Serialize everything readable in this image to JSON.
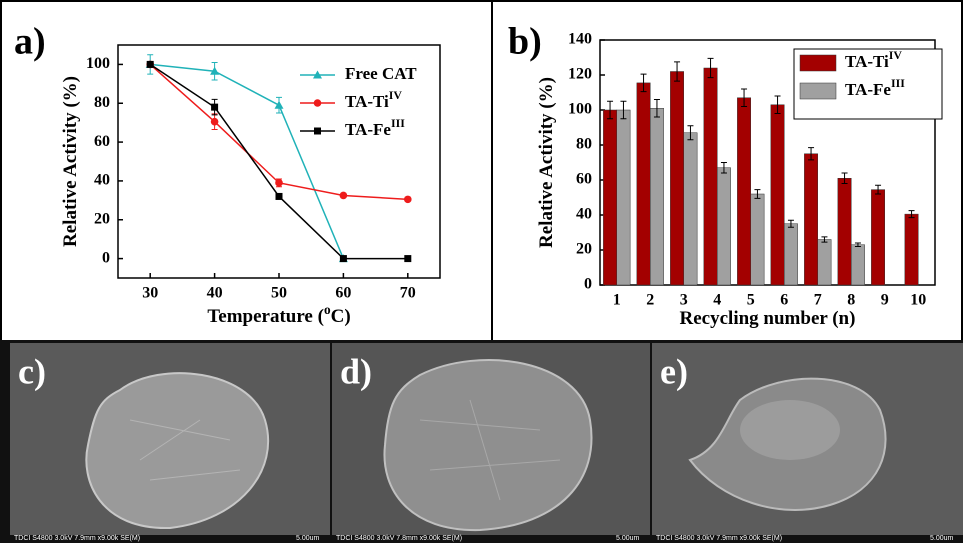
{
  "chart_data": [
    {
      "type": "line",
      "panel_label": "a)",
      "ylabel": "Relative Activity (%)",
      "xlabel": [
        "Temperature (",
        "o",
        "C)"
      ],
      "x": [
        30,
        40,
        50,
        60,
        70
      ],
      "xlim": [
        25,
        75
      ],
      "xticks": [
        30,
        40,
        50,
        60,
        70
      ],
      "ylim": [
        -10,
        110
      ],
      "yticks": [
        0,
        20,
        40,
        60,
        80,
        100
      ],
      "series": [
        {
          "name": "Free CAT",
          "name_superscript": null,
          "color": "#20b2b8",
          "marker": "triangle",
          "values": [
            100,
            96.5,
            79,
            0,
            null
          ],
          "errors": [
            5,
            4.5,
            4,
            null,
            null
          ]
        },
        {
          "name": "TA-Ti",
          "name_superscript": "IV",
          "color": "#ee1c1c",
          "marker": "circle",
          "values": [
            100,
            70.5,
            39,
            32.5,
            30.5
          ],
          "errors": [
            null,
            4,
            2,
            null,
            null
          ]
        },
        {
          "name": "TA-Fe",
          "name_superscript": "III",
          "color": "#000000",
          "marker": "square",
          "values": [
            100,
            78,
            32,
            0,
            0
          ],
          "errors": [
            null,
            4,
            null,
            null,
            null
          ]
        }
      ]
    },
    {
      "type": "bar",
      "panel_label": "b)",
      "ylabel": "Relative Activity (%)",
      "xlabel": [
        "Recycling number (n)"
      ],
      "categories": [
        "1",
        "2",
        "3",
        "4",
        "5",
        "6",
        "7",
        "8",
        "9",
        "10"
      ],
      "ylim": [
        0,
        140
      ],
      "yticks": [
        0,
        20,
        40,
        60,
        80,
        100,
        120,
        140
      ],
      "legend": "upper right",
      "series": [
        {
          "name": "TA-Ti",
          "name_superscript": "IV",
          "color": "#a30000",
          "values": [
            100,
            115.5,
            122,
            124,
            107,
            103,
            75,
            61,
            54.5,
            40.5
          ],
          "errors": [
            5,
            5,
            5.5,
            5.5,
            5,
            5,
            3.5,
            3,
            2.5,
            2
          ]
        },
        {
          "name": "TA-Fe",
          "name_superscript": "III",
          "color": "#a0a0a0",
          "values": [
            100,
            101,
            87,
            67,
            52,
            35,
            26,
            23,
            null,
            null
          ],
          "errors": [
            5,
            5,
            4,
            3,
            2.5,
            2,
            1.5,
            1,
            null,
            null
          ]
        }
      ]
    }
  ],
  "images": [
    {
      "label": "c)",
      "caption": "TDCI S4800 3.0kV 7.9mm x9.00k SE(M)",
      "scale": "5.00um"
    },
    {
      "label": "d)",
      "caption": "TDCI S4800 3.0kV 7.8mm x9.00k SE(M)",
      "scale": "5.00um"
    },
    {
      "label": "e)",
      "caption": "TDCI S4800 3.0kV 7.9mm x9.00k SE(M)",
      "scale": "5.00um"
    }
  ]
}
